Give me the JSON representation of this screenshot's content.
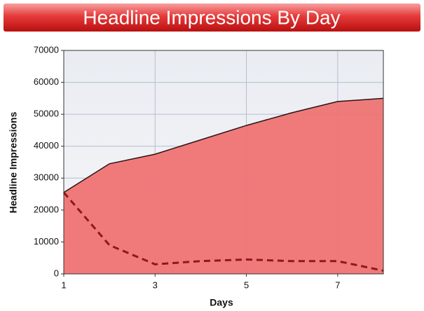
{
  "chart_data": {
    "type": "area",
    "title": "Headline Impressions By Day",
    "x_label": "Days",
    "y_label": "Headline Impressions",
    "x": [
      1,
      2,
      3,
      4,
      5,
      6,
      7,
      8
    ],
    "series": [
      {
        "color": "#2a1414",
        "fill": "#ef7373",
        "line_style": "solid",
        "values": [
          25500,
          34500,
          37500,
          42000,
          46500,
          50500,
          54000,
          55000
        ]
      },
      {
        "color": "#8b1a1a",
        "line_style": "dashed",
        "values": [
          25500,
          9000,
          3000,
          4000,
          4500,
          4000,
          4000,
          1000
        ]
      }
    ],
    "xlim": [
      1,
      8
    ],
    "xticks": [
      1,
      3,
      5,
      7
    ],
    "ylim": [
      0,
      70000
    ],
    "yticks": [
      0,
      10000,
      20000,
      30000,
      40000,
      50000,
      60000,
      70000
    ],
    "grid": true
  }
}
